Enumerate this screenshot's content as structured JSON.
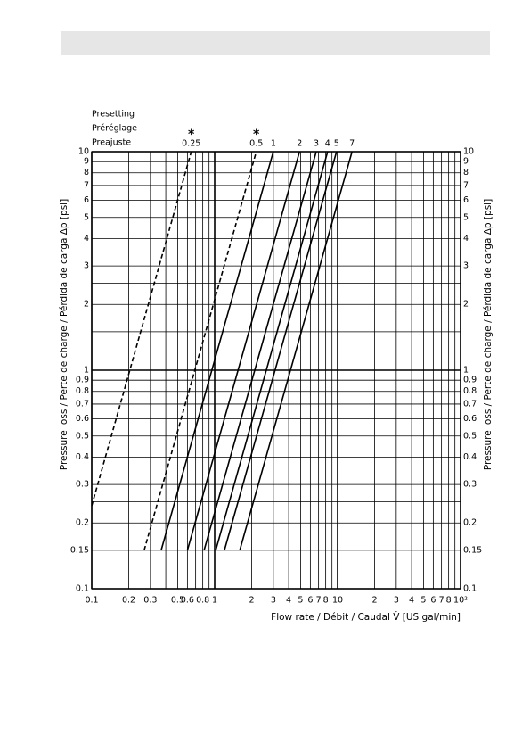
{
  "chart_data": {
    "type": "line",
    "legend_title_lines": [
      "Presetting",
      "Préréglage",
      "Preajuste"
    ],
    "xlabel": "Flow rate  /  Débit  /  Caudal  V̇  [US gal/min]",
    "ylabel": "Pressure loss / Perte de charge / Pérdida de carga Δp [psi]",
    "log_x": true,
    "log_y": true,
    "grid": true,
    "color": "#000000",
    "xlim": [
      0.1,
      100
    ],
    "ylim": [
      0.1,
      10
    ],
    "xticks": [
      0.1,
      0.2,
      0.3,
      0.5,
      0.6,
      0.8,
      1,
      {
        "value": 2,
        "label": "2"
      },
      3,
      4,
      5,
      6,
      7,
      8,
      10,
      {
        "value": 20,
        "label": "2"
      },
      {
        "value": 30,
        "label": "3"
      },
      {
        "value": 40,
        "label": "4"
      },
      {
        "value": 50,
        "label": "5"
      },
      {
        "value": 60,
        "label": "6"
      },
      {
        "value": 70,
        "label": "7"
      },
      {
        "value": 80,
        "label": "8"
      },
      {
        "value": 100,
        "label": "10²"
      }
    ],
    "xminor": [
      0.4,
      0.7,
      0.9,
      9,
      90
    ],
    "yticks": [
      0.1,
      0.15,
      0.2,
      0.3,
      0.4,
      0.5,
      0.6,
      0.7,
      0.8,
      0.9,
      1,
      2,
      3,
      4,
      5,
      6,
      7,
      8,
      9,
      10
    ],
    "yminor": [
      0.25,
      1.5,
      2.5
    ],
    "series": [
      {
        "name": "0.25",
        "note": "*",
        "style": "dashed",
        "x": [
          0.1,
          0.645
        ],
        "y": [
          0.24,
          10
        ]
      },
      {
        "name": "0.5",
        "note": "*",
        "style": "dashed",
        "x": [
          0.267,
          2.18
        ],
        "y": [
          0.15,
          10
        ]
      },
      {
        "name": "1",
        "style": "solid",
        "x": [
          0.367,
          3.0
        ],
        "y": [
          0.15,
          10
        ]
      },
      {
        "name": "2",
        "style": "solid",
        "x": [
          0.6,
          4.9
        ],
        "y": [
          0.15,
          10
        ]
      },
      {
        "name": "3",
        "style": "solid",
        "x": [
          0.82,
          6.7
        ],
        "y": [
          0.15,
          10
        ]
      },
      {
        "name": "4",
        "style": "solid",
        "x": [
          1.02,
          8.3
        ],
        "y": [
          0.15,
          10
        ]
      },
      {
        "name": "5",
        "style": "solid",
        "x": [
          1.2,
          9.8
        ],
        "y": [
          0.15,
          10
        ]
      },
      {
        "name": "7",
        "style": "solid",
        "x": [
          1.6,
          13.1
        ],
        "y": [
          0.15,
          10
        ]
      }
    ]
  }
}
